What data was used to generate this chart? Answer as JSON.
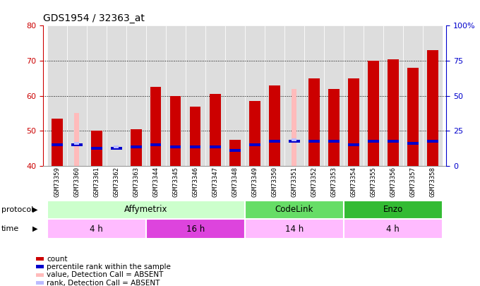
{
  "title": "GDS1954 / 32363_at",
  "samples": [
    "GSM73359",
    "GSM73360",
    "GSM73361",
    "GSM73362",
    "GSM73363",
    "GSM73344",
    "GSM73345",
    "GSM73346",
    "GSM73347",
    "GSM73348",
    "GSM73349",
    "GSM73350",
    "GSM73351",
    "GSM73352",
    "GSM73353",
    "GSM73354",
    "GSM73355",
    "GSM73356",
    "GSM73357",
    "GSM73358"
  ],
  "red_values": [
    53.5,
    40.0,
    50.0,
    40.0,
    50.5,
    62.5,
    60.0,
    57.0,
    60.5,
    47.5,
    58.5,
    63.0,
    40.0,
    65.0,
    62.0,
    65.0,
    70.0,
    70.5,
    68.0,
    73.0
  ],
  "pink_values": [
    0,
    55.0,
    0,
    0,
    0,
    0,
    0,
    0,
    0,
    0,
    0,
    0,
    62.0,
    0,
    0,
    0,
    0,
    0,
    0,
    0
  ],
  "blue_values": [
    46.0,
    46.0,
    45.0,
    45.0,
    45.5,
    46.0,
    45.5,
    45.5,
    45.5,
    44.5,
    46.0,
    47.0,
    47.0,
    47.0,
    47.0,
    46.0,
    47.0,
    47.0,
    46.5,
    47.0
  ],
  "light_blue_values": [
    0,
    46.5,
    0,
    45.5,
    0,
    0,
    0,
    0,
    0,
    0,
    0,
    0,
    47.5,
    0,
    0,
    0,
    0,
    0,
    0,
    0
  ],
  "ylim_left": [
    40,
    80
  ],
  "ylim_right": [
    0,
    100
  ],
  "yticks_left": [
    40,
    50,
    60,
    70,
    80
  ],
  "yticks_right": [
    0,
    25,
    50,
    75,
    100
  ],
  "protocol_groups": [
    {
      "label": "Affymetrix",
      "start": 0,
      "end": 10,
      "color": "#ccffcc"
    },
    {
      "label": "CodeLink",
      "start": 10,
      "end": 15,
      "color": "#66dd66"
    },
    {
      "label": "Enzo",
      "start": 15,
      "end": 20,
      "color": "#33bb33"
    }
  ],
  "time_groups": [
    {
      "label": "4 h",
      "start": 0,
      "end": 5,
      "color": "#ffbbff"
    },
    {
      "label": "16 h",
      "start": 5,
      "end": 10,
      "color": "#dd44dd"
    },
    {
      "label": "14 h",
      "start": 10,
      "end": 15,
      "color": "#ffbbff"
    },
    {
      "label": "4 h",
      "start": 15,
      "end": 20,
      "color": "#ffbbff"
    }
  ],
  "legend_items": [
    {
      "label": "count",
      "color": "#cc0000"
    },
    {
      "label": "percentile rank within the sample",
      "color": "#0000cc"
    },
    {
      "label": "value, Detection Call = ABSENT",
      "color": "#ffbbbb"
    },
    {
      "label": "rank, Detection Call = ABSENT",
      "color": "#bbbbff"
    }
  ],
  "bar_width": 0.55,
  "bg_color": "#ffffff",
  "plot_bg_color": "#ffffff",
  "axis_left_color": "#cc0000",
  "axis_right_color": "#0000cc"
}
